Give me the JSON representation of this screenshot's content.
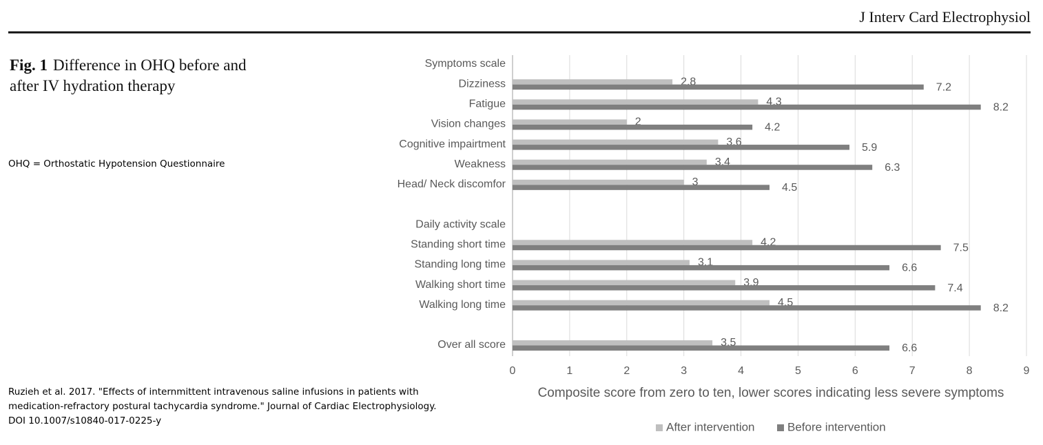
{
  "header": {
    "journal": "J Interv Card Electrophysiol"
  },
  "figure": {
    "label": "Fig. 1",
    "caption": "Difference in OHQ before and after IV hydration therapy"
  },
  "note": "OHQ = Orthostatic Hypotension Questionnaire",
  "citation": [
    "Ruzieh et al. 2017. \"Effects of internmittent intravenous saline infusions in patients with",
    "medication-refractory postural tachycardia syndrome.\" Journal of Cardiac Electrophysiology.",
    "DOI 10.1007/s10840-017-0225-y"
  ],
  "chart_data": {
    "type": "hbar",
    "x_label": "Composite score from zero to ten, lower scores indicating less severe symptoms",
    "categories": [
      "Symptoms scale",
      "Dizziness",
      "Fatigue",
      "Vision changes",
      "Cognitive impairtment",
      "Weakness",
      "Head/ Neck discomfor",
      null,
      "Daily activity scale",
      "Standing short time",
      "Standing long time",
      "Walking short time",
      "Walking long time",
      null,
      "Over all score"
    ],
    "series": [
      {
        "name": "After intervention",
        "color": "#bfbfbf",
        "values": [
          null,
          2.8,
          4.3,
          2,
          3.6,
          3.4,
          3,
          null,
          null,
          4.2,
          3.1,
          3.9,
          4.5,
          null,
          3.5
        ]
      },
      {
        "name": "Before intervention",
        "color": "#7f7f7f",
        "values": [
          null,
          7.2,
          8.2,
          4.2,
          5.9,
          6.3,
          4.5,
          null,
          null,
          7.5,
          6.6,
          7.4,
          8.2,
          null,
          6.6
        ]
      }
    ],
    "xlim": [
      0,
      9
    ],
    "xticks": [
      0,
      1,
      2,
      3,
      4,
      5,
      6,
      7,
      8,
      9
    ],
    "grid": true,
    "legend": "bottom"
  }
}
